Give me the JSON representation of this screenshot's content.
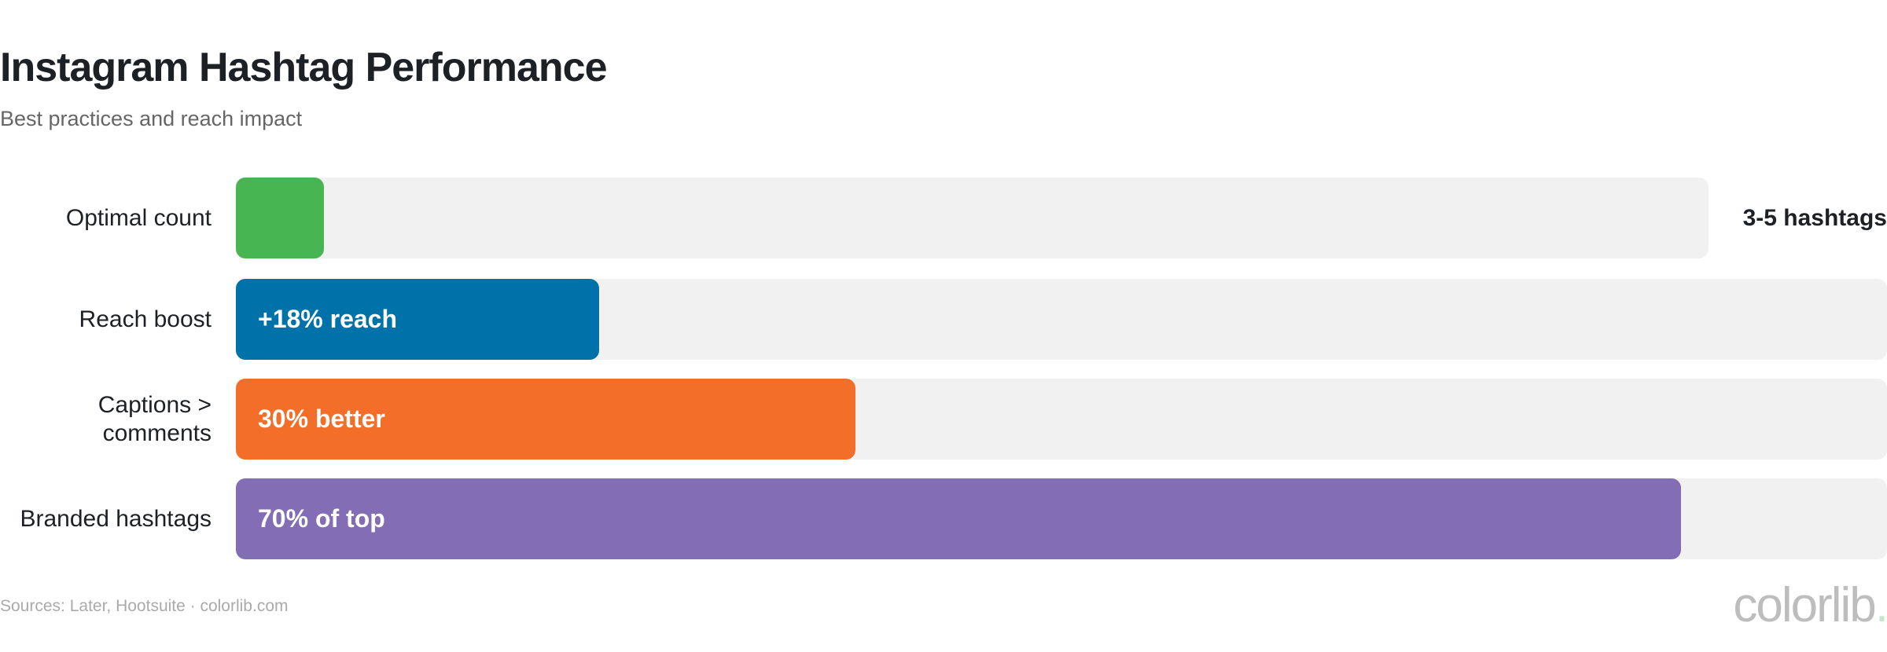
{
  "chart_data": {
    "type": "bar",
    "orientation": "horizontal",
    "title": "Instagram Hashtag Performance",
    "subtitle": "Best practices and reach impact",
    "categories": [
      "Optimal count",
      "Reach boost",
      "Captions > comments",
      "Branded hashtags"
    ],
    "values_percent_fill": [
      6,
      22,
      37.5,
      87.5
    ],
    "value_labels": [
      "3-5 hashtags",
      "+18% reach",
      "30% better",
      "70% of top"
    ],
    "colors": [
      "#48b553",
      "#0072aa",
      "#f36f29",
      "#836db4"
    ],
    "track_color": "#f1f1f1",
    "grid": false,
    "legend": "none"
  },
  "footer": {
    "source": "Sources: Later, Hootsuite · colorlib.com"
  },
  "logo": {
    "text": "colorlib",
    "dot": "."
  }
}
